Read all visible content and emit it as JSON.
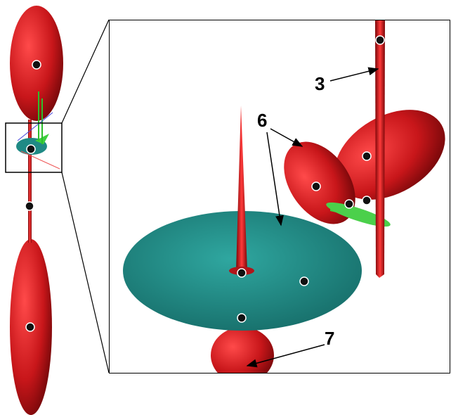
{
  "labels": {
    "rod": "3",
    "disk": "6",
    "bulb": "7"
  }
}
